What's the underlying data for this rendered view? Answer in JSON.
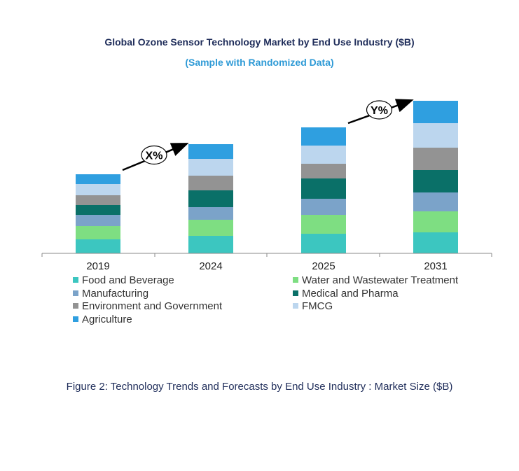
{
  "chart_data": {
    "type": "bar",
    "stacked": true,
    "title": "Global Ozone Sensor Technology Market by End Use Industry ($B)",
    "subtitle": "(Sample with Randomized Data)",
    "categories": [
      "2019",
      "2024",
      "2025",
      "2031"
    ],
    "series": [
      {
        "name": "Food and Beverage",
        "color": "#3cc6c0",
        "values": [
          20,
          25,
          28,
          30
        ]
      },
      {
        "name": "Water and Wastewater Treatment",
        "color": "#7ede82",
        "values": [
          19,
          23,
          27,
          30
        ]
      },
      {
        "name": "Manufacturing",
        "color": "#7ba3c9",
        "values": [
          16,
          18,
          23,
          27
        ]
      },
      {
        "name": "Medical and Pharma",
        "color": "#0a7068",
        "values": [
          14,
          24,
          29,
          32
        ]
      },
      {
        "name": "Environment and Government",
        "color": "#939393",
        "values": [
          14,
          21,
          21,
          32
        ]
      },
      {
        "name": "FMCG",
        "color": "#bcd6ee",
        "values": [
          16,
          24,
          26,
          35
        ]
      },
      {
        "name": "Agriculture",
        "color": "#2f9fe0",
        "values": [
          14,
          21,
          26,
          32
        ]
      }
    ],
    "annotations": [
      {
        "label": "X%",
        "from": "2019",
        "to": "2024"
      },
      {
        "label": "Y%",
        "from": "2025",
        "to": "2031"
      }
    ],
    "xlabel": "",
    "ylabel": "",
    "grid": false,
    "legend_position": "bottom"
  },
  "caption": "Figure 2: Technology  Trends  and Forecasts by  End Use Industry   : Market Size ($B)"
}
